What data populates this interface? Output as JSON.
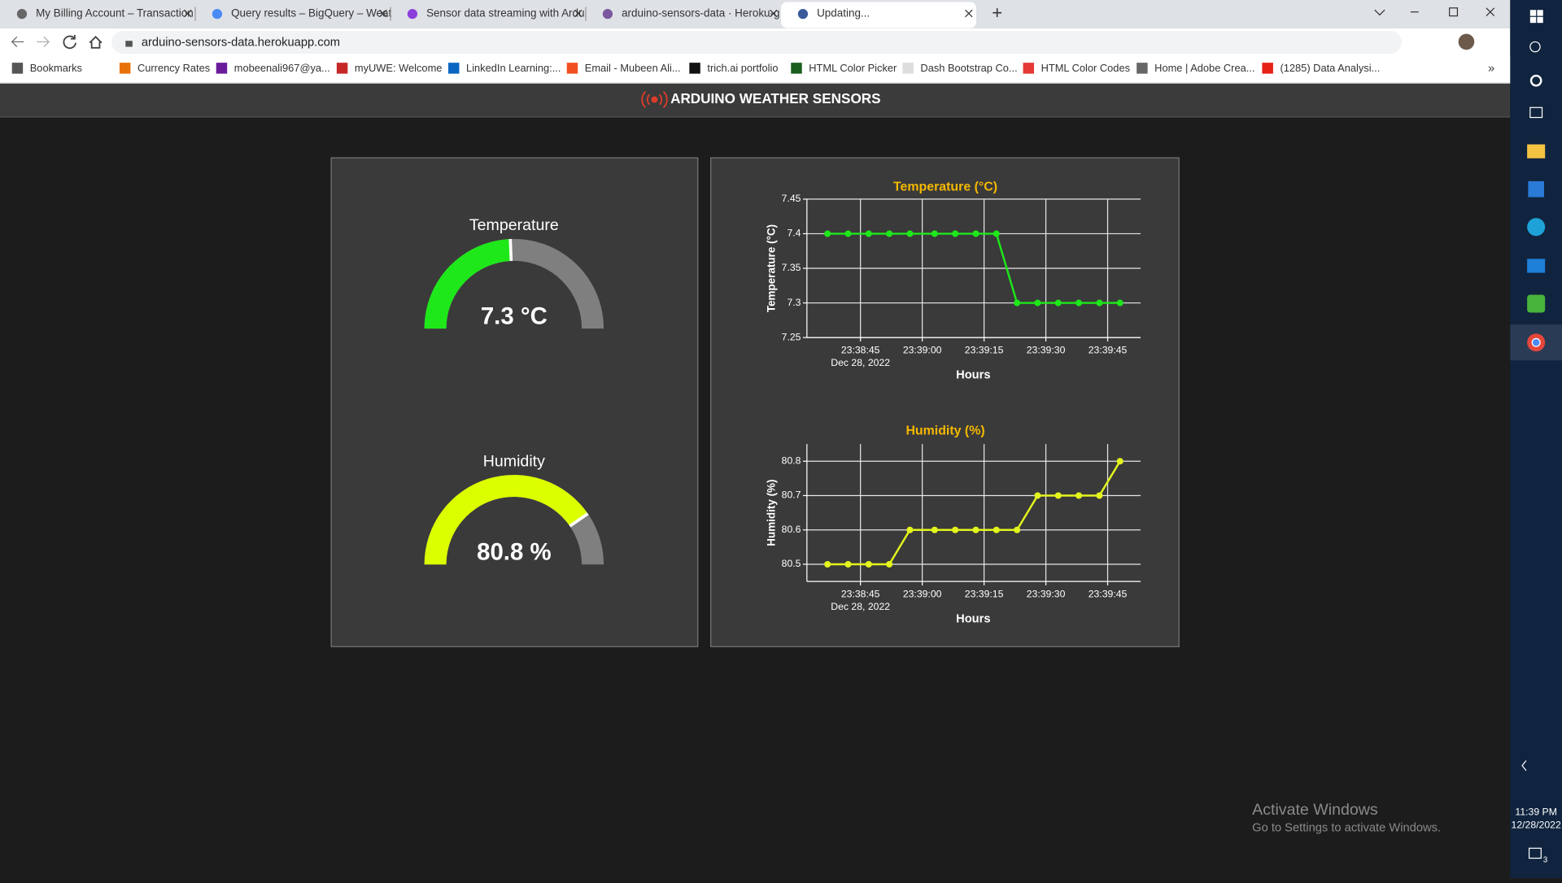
{
  "browser": {
    "tabs": [
      "My Billing Account – Transaction",
      "Query results – BigQuery – Weat",
      "Sensor data streaming with Ardu",
      "arduino-sensors-data · Heroku-g",
      "Updating..."
    ],
    "address": "arduino-sensors-data.herokuapp.com",
    "bookmarks": [
      "Bookmarks",
      "Currency Rates",
      "mobeenali967@ya...",
      "myUWE: Welcome",
      "LinkedIn Learning:...",
      "Email - Mubeen Ali...",
      "trich.ai portfolio",
      "HTML Color Picker",
      "Dash Bootstrap Co...",
      "HTML Color Codes",
      "Home | Adobe Crea...",
      "(1285) Data Analysi..."
    ]
  },
  "header": {
    "title": "ARDUINO WEATHER SENSORS"
  },
  "gauges": [
    {
      "title": "Temperature",
      "value": 7.3,
      "value_label": "7.3 °C",
      "range": [
        0,
        15
      ],
      "color": "#1ee81a"
    },
    {
      "title": "Humidity",
      "value": 80.8,
      "value_label": "80.8 %",
      "range": [
        0,
        100
      ],
      "color": "#dcff00"
    }
  ],
  "chart_data": [
    {
      "type": "line",
      "title": "Temperature (°C)",
      "x_label": "Hours",
      "y_label": "Temperature (°C)",
      "date_label": "Dec 28, 2022",
      "x": [
        "23:38:37",
        "23:38:42",
        "23:38:47",
        "23:38:52",
        "23:38:57",
        "23:39:03",
        "23:39:08",
        "23:39:13",
        "23:39:18",
        "23:39:23",
        "23:39:28",
        "23:39:33",
        "23:39:38",
        "23:39:43",
        "23:39:48"
      ],
      "series": [
        {
          "name": "Temperature",
          "color": "#1ee81a",
          "values": [
            7.4,
            7.4,
            7.4,
            7.4,
            7.4,
            7.4,
            7.4,
            7.4,
            7.4,
            7.3,
            7.3,
            7.3,
            7.3,
            7.3,
            7.3
          ]
        }
      ],
      "xlim": [
        "23:38:32",
        "23:39:53"
      ],
      "xticks": [
        "23:38:45",
        "23:39:00",
        "23:39:15",
        "23:39:30",
        "23:39:45"
      ],
      "ylim": [
        7.25,
        7.45
      ],
      "yticks": [
        7.25,
        7.3,
        7.35,
        7.4,
        7.45
      ],
      "grid": true
    },
    {
      "type": "line",
      "title": "Humidity (%)",
      "x_label": "Hours",
      "y_label": "Humidity (%)",
      "date_label": "Dec 28, 2022",
      "x": [
        "23:38:37",
        "23:38:42",
        "23:38:47",
        "23:38:52",
        "23:38:57",
        "23:39:03",
        "23:39:08",
        "23:39:13",
        "23:39:18",
        "23:39:23",
        "23:39:28",
        "23:39:33",
        "23:39:38",
        "23:39:43",
        "23:39:48"
      ],
      "series": [
        {
          "name": "Humidity",
          "color": "#e3f51c",
          "values": [
            80.5,
            80.5,
            80.5,
            80.5,
            80.6,
            80.6,
            80.6,
            80.6,
            80.6,
            80.6,
            80.7,
            80.7,
            80.7,
            80.7,
            80.8
          ]
        }
      ],
      "xlim": [
        "23:38:32",
        "23:39:53"
      ],
      "xticks": [
        "23:38:45",
        "23:39:00",
        "23:39:15",
        "23:39:30",
        "23:39:45"
      ],
      "ylim": [
        80.45,
        80.85
      ],
      "yticks": [
        80.5,
        80.6,
        80.7,
        80.8
      ],
      "grid": true
    }
  ],
  "watermark": {
    "title": "Activate Windows",
    "subtitle": "Go to Settings to activate Windows."
  },
  "taskbar": {
    "time": "11:39 PM",
    "date": "12/28/2022",
    "notifications": 3
  }
}
